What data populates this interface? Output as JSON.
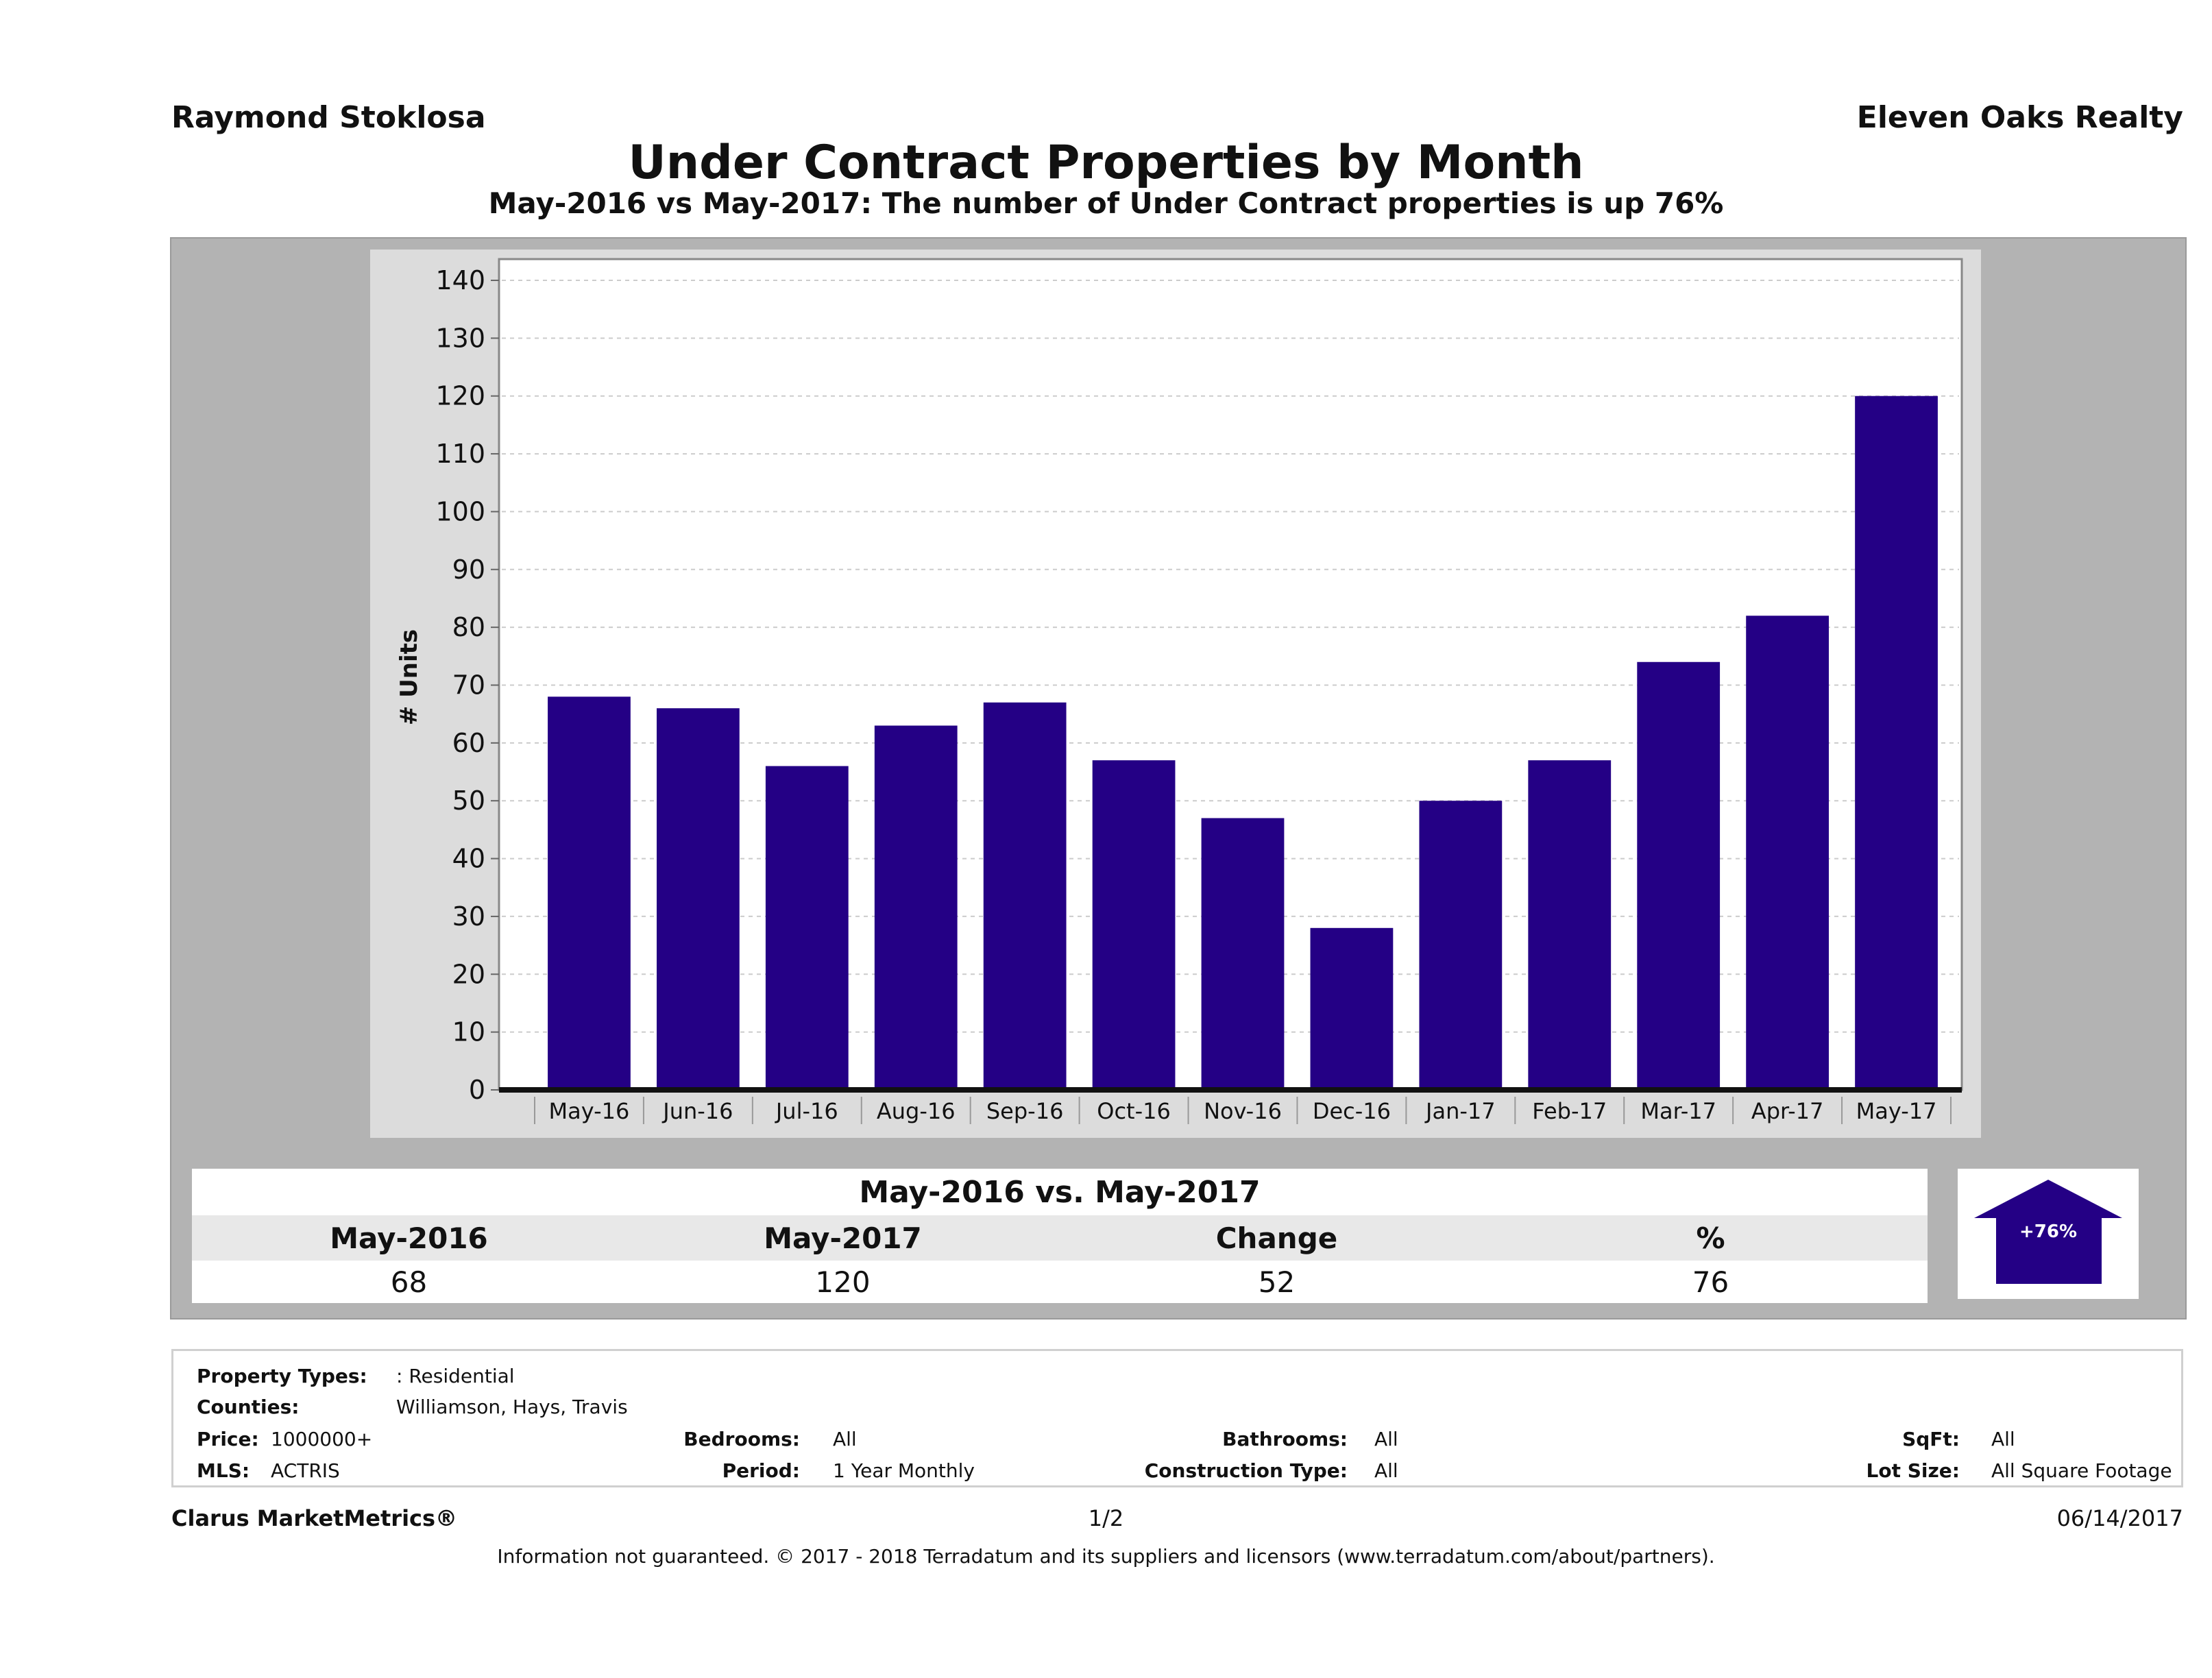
{
  "header": {
    "agent_name": "Raymond Stoklosa",
    "company": "Eleven Oaks Realty",
    "title": "Under Contract Properties by Month",
    "subtitle": "May-2016 vs May-2017: The number of Under Contract  properties is up 76%"
  },
  "colors": {
    "bar": "#240085",
    "panel_bg": "#b3b3b3",
    "chart_bg": "#dcdcdc",
    "plot_bg": "#ffffff"
  },
  "chart_data": {
    "type": "bar",
    "title": "Under Contract Properties by Month",
    "xlabel": "",
    "ylabel": "# Units",
    "ylim": [
      0,
      140
    ],
    "yticks": [
      0,
      10,
      20,
      30,
      40,
      50,
      60,
      70,
      80,
      90,
      100,
      110,
      120,
      130,
      140
    ],
    "grid": true,
    "categories": [
      "May-16",
      "Jun-16",
      "Jul-16",
      "Aug-16",
      "Sep-16",
      "Oct-16",
      "Nov-16",
      "Dec-16",
      "Jan-17",
      "Feb-17",
      "Mar-17",
      "Apr-17",
      "May-17"
    ],
    "values": [
      68,
      66,
      56,
      63,
      67,
      57,
      47,
      28,
      50,
      57,
      74,
      82,
      120
    ]
  },
  "summary": {
    "title": "May-2016 vs. May-2017",
    "headers": [
      "May-2016",
      "May-2017",
      "Change",
      "%"
    ],
    "values": [
      "68",
      "120",
      "52",
      "76"
    ],
    "badge": "+76%",
    "direction": "up"
  },
  "criteria": {
    "property_types_label": "Property Types:",
    "property_types_value": ": Residential",
    "counties_label": "Counties:",
    "counties_value": "Williamson, Hays, Travis",
    "price_label": "Price:",
    "price_value": "1000000+",
    "mls_label": "MLS:",
    "mls_value": "ACTRIS",
    "bedrooms_label": "Bedrooms:",
    "bedrooms_value": "All",
    "period_label": "Period:",
    "period_value": "1 Year Monthly",
    "bathrooms_label": "Bathrooms:",
    "bathrooms_value": "All",
    "construction_label": "Construction Type:",
    "construction_value": "All",
    "sqft_label": "SqFt:",
    "sqft_value": "All",
    "lot_label": "Lot Size:",
    "lot_value": "All Square Footage"
  },
  "footer": {
    "brand": "Clarus MarketMetrics®",
    "page": "1/2",
    "date": "06/14/2017",
    "disclaimer": "Information not guaranteed. © 2017 - 2018 Terradatum and its suppliers and licensors (www.terradatum.com/about/partners)."
  }
}
